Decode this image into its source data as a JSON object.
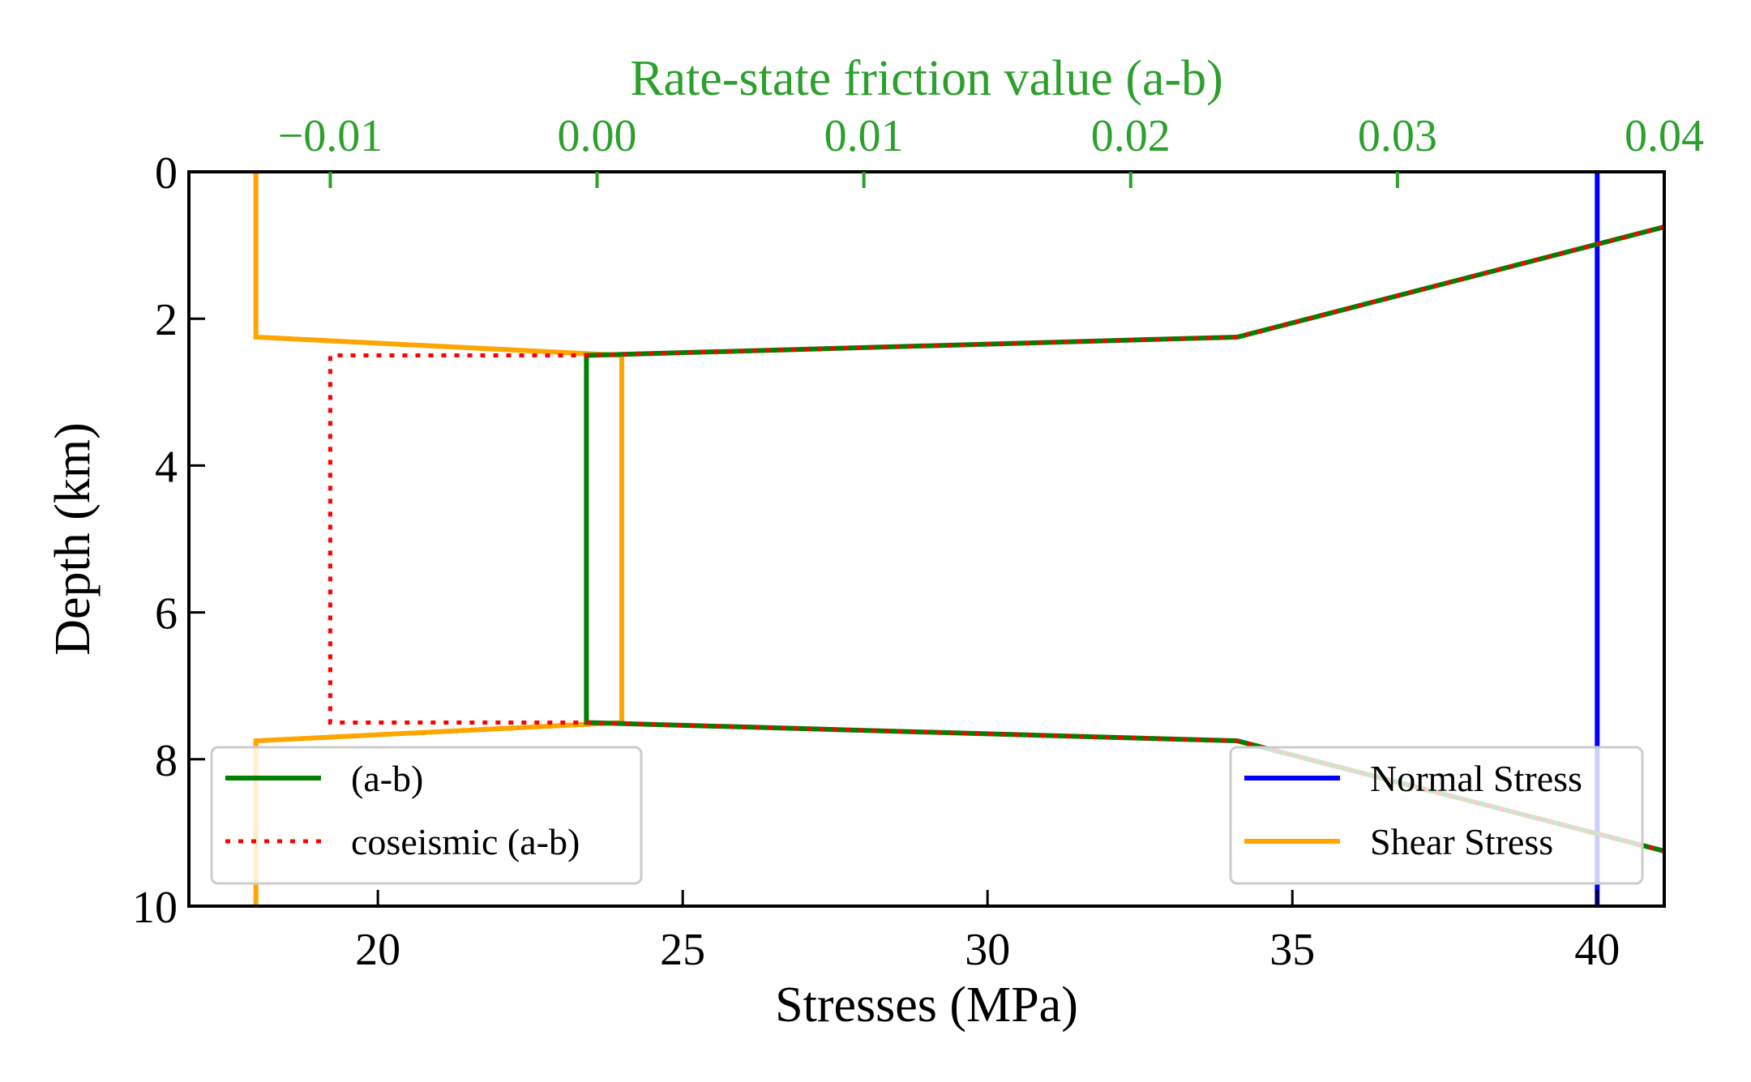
{
  "chart_data": {
    "type": "line",
    "xlabel": "Stresses (MPa)",
    "ylabel": "Depth (km)",
    "top_xlabel": "Rate-state friction value (a-b)",
    "xlim": [
      16.9,
      41.1
    ],
    "ylim": [
      10,
      0
    ],
    "top_xlim": [
      -0.0153,
      0.04
    ],
    "xticks": [
      20,
      25,
      30,
      35,
      40
    ],
    "xtick_labels": [
      "20",
      "25",
      "30",
      "35",
      "40"
    ],
    "yticks": [
      0,
      2,
      4,
      6,
      8,
      10
    ],
    "ytick_labels": [
      "0",
      "2",
      "4",
      "6",
      "8",
      "10"
    ],
    "top_xticks": [
      -0.01,
      0.0,
      0.01,
      0.02,
      0.03,
      0.04
    ],
    "top_xtick_labels": [
      "−0.01",
      "0.00",
      "0.01",
      "0.02",
      "0.03",
      "0.04"
    ],
    "grid": false,
    "top_axis_color": "#2ca02c",
    "series": [
      {
        "name": "(a-b)",
        "axis": "top",
        "color": "#008000",
        "style": "solid",
        "x": [
          0.048,
          0.024,
          -0.0004,
          -0.0004,
          0.024,
          0.048
        ],
        "y": [
          0,
          2.25,
          2.5,
          7.5,
          7.75,
          10
        ]
      },
      {
        "name": "coseismic (a-b)",
        "axis": "top",
        "color": "#ff0000",
        "style": "dotted",
        "x": [
          0.048,
          0.024,
          -0.0004,
          -0.01,
          -0.01,
          -0.0004,
          0.024,
          0.048
        ],
        "y": [
          0,
          2.25,
          2.5,
          2.5,
          7.5,
          7.5,
          7.75,
          10
        ]
      },
      {
        "name": "Normal Stress",
        "axis": "bottom",
        "color": "#0000ff",
        "style": "solid",
        "x": [
          40,
          40
        ],
        "y": [
          0,
          10
        ]
      },
      {
        "name": "Shear Stress",
        "axis": "bottom",
        "color": "#ffa500",
        "style": "solid",
        "x": [
          18,
          18,
          24,
          24,
          18,
          18
        ],
        "y": [
          0,
          2.25,
          2.5,
          7.5,
          7.75,
          10
        ]
      }
    ],
    "legends": [
      {
        "placement": "lower-left",
        "entries": [
          "(a-b)",
          "coseismic (a-b)"
        ]
      },
      {
        "placement": "lower-right",
        "entries": [
          "Normal Stress",
          "Shear Stress"
        ]
      }
    ]
  }
}
